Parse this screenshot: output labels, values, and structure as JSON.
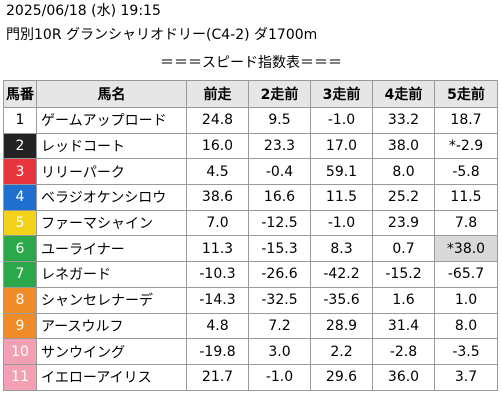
{
  "header": {
    "datetime": "2025/06/18 (水) 19:15",
    "race": "門別10R グランシャリオドリー(C4-2) ダ1700m",
    "section_title": "＝＝＝スピード指数表＝＝＝"
  },
  "table": {
    "columns": [
      "馬番",
      "馬名",
      "前走",
      "2走前",
      "3走前",
      "4走前",
      "5走前"
    ],
    "rows": [
      {
        "no": "1",
        "name": "ゲームアップロード",
        "v": [
          "24.8",
          "9.5",
          "-1.0",
          "33.2",
          "18.7"
        ],
        "color": "#ffffff",
        "text": "#000000"
      },
      {
        "no": "2",
        "name": "レッドコート",
        "v": [
          "16.0",
          "23.3",
          "17.0",
          "38.0",
          "*-2.9"
        ],
        "color": "#222222",
        "text": "#ffffff"
      },
      {
        "no": "3",
        "name": "リリーパーク",
        "v": [
          "4.5",
          "-0.4",
          "59.1",
          "8.0",
          "-5.8"
        ],
        "color": "#e8343c",
        "text": "#ffffff"
      },
      {
        "no": "4",
        "name": "ベラジオケンシロウ",
        "v": [
          "38.6",
          "16.6",
          "11.5",
          "25.2",
          "11.5"
        ],
        "color": "#1f6fd1",
        "text": "#ffffff"
      },
      {
        "no": "5",
        "name": "ファーマシャイン",
        "v": [
          "7.0",
          "-12.5",
          "-1.0",
          "23.9",
          "7.8"
        ],
        "color": "#f2d21b",
        "text": "#ffffff"
      },
      {
        "no": "6",
        "name": "ユーライナー",
        "v": [
          "11.3",
          "-15.3",
          "8.3",
          "0.7",
          "*38.0"
        ],
        "color": "#2aa84a",
        "text": "#ffffff"
      },
      {
        "no": "7",
        "name": "レネガード",
        "v": [
          "-10.3",
          "-26.6",
          "-42.2",
          "-15.2",
          "-65.7"
        ],
        "color": "#2aa84a",
        "text": "#ffffff"
      },
      {
        "no": "8",
        "name": "シャンセレナーデ",
        "v": [
          "-14.3",
          "-32.5",
          "-35.6",
          "1.6",
          "1.0"
        ],
        "color": "#f08c28",
        "text": "#ffffff"
      },
      {
        "no": "9",
        "name": "アースウルフ",
        "v": [
          "4.8",
          "7.2",
          "28.9",
          "31.4",
          "8.0"
        ],
        "color": "#f08c28",
        "text": "#ffffff"
      },
      {
        "no": "10",
        "name": "サンウイング",
        "v": [
          "-19.8",
          "3.0",
          "2.2",
          "-2.8",
          "-3.5"
        ],
        "color": "#f3a0b4",
        "text": "#ffffff"
      },
      {
        "no": "11",
        "name": "イエローアイリス",
        "v": [
          "21.7",
          "-1.0",
          "29.6",
          "36.0",
          "3.7"
        ],
        "color": "#f3a0b4",
        "text": "#ffffff"
      }
    ],
    "highlighted_cell": {
      "row": 6,
      "col": 5
    }
  }
}
